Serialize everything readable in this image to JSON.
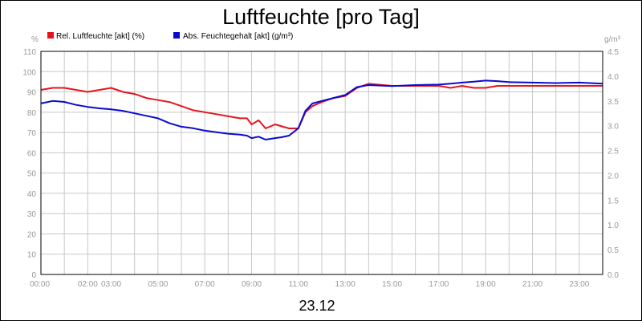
{
  "chart_data": {
    "type": "line",
    "title": "Luftfeuchte [pro Tag]",
    "date_label": "23.12",
    "legend_position": "top-left",
    "grid": true,
    "x_ticks": [
      "00:00",
      "02:00",
      "03:00",
      "05:00",
      "07:00",
      "09:00",
      "11:00",
      "13:00",
      "15:00",
      "17:00",
      "19:00",
      "21:00",
      "23:00"
    ],
    "x_tick_hours": [
      0,
      2,
      3,
      5,
      7,
      9,
      11,
      13,
      15,
      17,
      19,
      21,
      23
    ],
    "xlim": [
      0,
      24
    ],
    "y_left": {
      "unit": "%",
      "ylim": [
        0,
        110
      ],
      "ticks": [
        "0",
        "10",
        "20",
        "30",
        "40",
        "50",
        "60",
        "70",
        "80",
        "90",
        "100",
        "110"
      ]
    },
    "y_right": {
      "unit": "g/m³",
      "ylim": [
        0,
        4.5
      ],
      "ticks": [
        "0.0",
        "0.5",
        "1.0",
        "1.5",
        "2.0",
        "2.5",
        "3.0",
        "3.5",
        "4.0",
        "4.5"
      ]
    },
    "series": [
      {
        "name": "Rel. Luftfeuchte [akt] (%)",
        "axis": "left",
        "color": "#e8141c",
        "x": [
          0,
          0.5,
          1,
          1.5,
          2,
          2.5,
          3,
          3.5,
          4,
          4.5,
          5,
          5.5,
          6,
          6.5,
          7,
          7.5,
          8,
          8.5,
          8.8,
          9,
          9.3,
          9.6,
          10,
          10.3,
          10.6,
          11,
          11.3,
          11.6,
          12,
          12.5,
          13,
          13.5,
          14,
          15,
          16,
          17,
          17.5,
          18,
          18.5,
          19,
          19.5,
          20,
          21,
          22,
          23,
          24
        ],
        "values": [
          91,
          92,
          92,
          91,
          90,
          91,
          92,
          90,
          89,
          87,
          86,
          85,
          83,
          81,
          80,
          79,
          78,
          77,
          77,
          74,
          76,
          72,
          74,
          73,
          72,
          72,
          80,
          83,
          85,
          87,
          88,
          92,
          94,
          93,
          93,
          93,
          92,
          93,
          92,
          92,
          93,
          93,
          93,
          93,
          93,
          93
        ]
      },
      {
        "name": "Abs. Feuchtegehalt [akt] (g/m³)",
        "axis": "right",
        "color": "#0a0ad2",
        "x": [
          0,
          0.5,
          1,
          1.5,
          2,
          2.5,
          3,
          3.5,
          4,
          4.5,
          5,
          5.5,
          6,
          6.5,
          7,
          7.5,
          8,
          8.5,
          8.8,
          9,
          9.3,
          9.6,
          10,
          10.3,
          10.6,
          11,
          11.3,
          11.6,
          12,
          12.5,
          13,
          13.5,
          14,
          15,
          16,
          17,
          17.5,
          18,
          18.5,
          19,
          19.5,
          20,
          21,
          22,
          23,
          24
        ],
        "values": [
          3.45,
          3.5,
          3.48,
          3.42,
          3.38,
          3.35,
          3.33,
          3.3,
          3.25,
          3.2,
          3.15,
          3.05,
          2.98,
          2.95,
          2.9,
          2.87,
          2.84,
          2.82,
          2.8,
          2.75,
          2.78,
          2.72,
          2.75,
          2.77,
          2.8,
          2.95,
          3.3,
          3.45,
          3.5,
          3.56,
          3.62,
          3.78,
          3.82,
          3.8,
          3.82,
          3.83,
          3.85,
          3.87,
          3.89,
          3.91,
          3.9,
          3.88,
          3.87,
          3.86,
          3.87,
          3.85
        ]
      }
    ]
  }
}
